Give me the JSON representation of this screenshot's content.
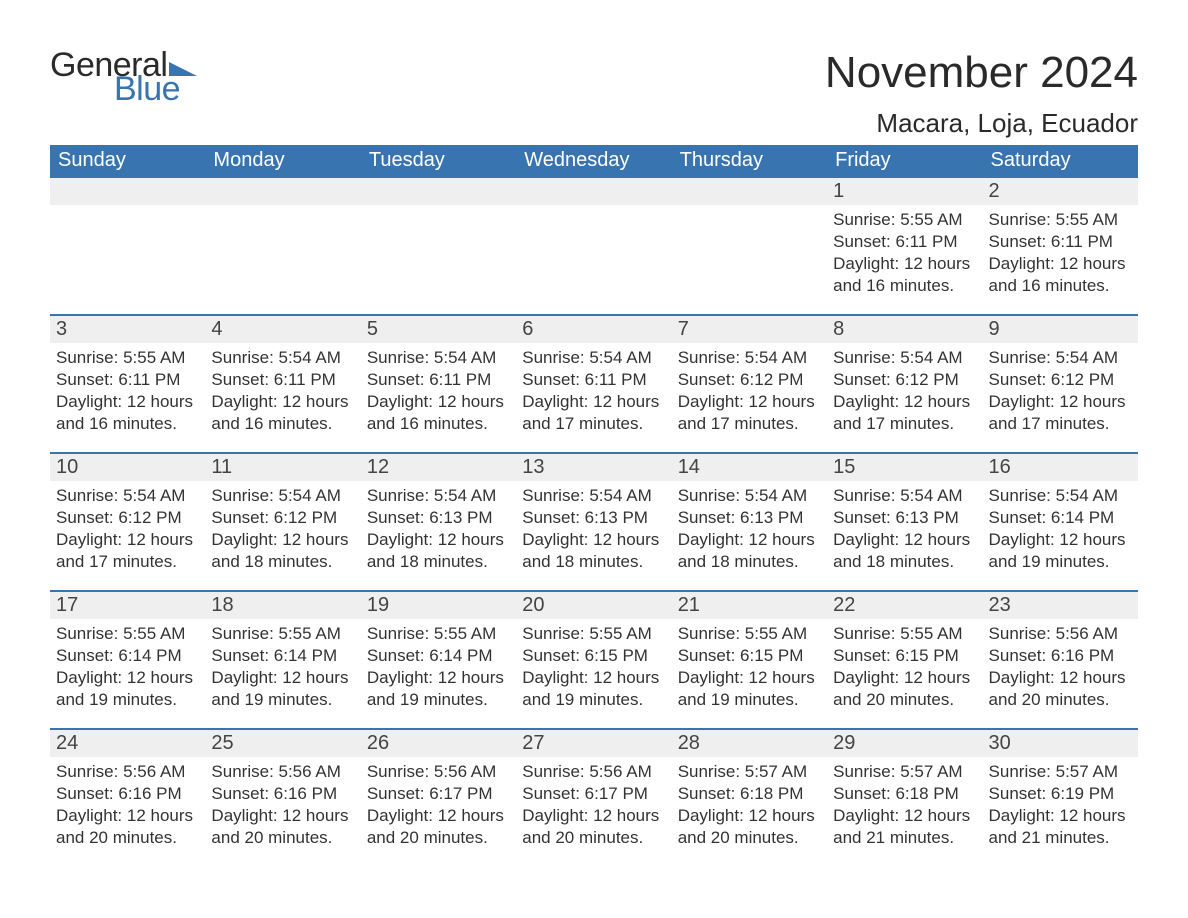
{
  "brand": {
    "general": "General",
    "blue": "Blue"
  },
  "title": "November 2024",
  "location": "Macara, Loja, Ecuador",
  "colors": {
    "header_bg": "#3874b0",
    "header_text": "#ffffff",
    "daynum_bg": "#efefef",
    "border_top": "#3874b0",
    "page_bg": "#ffffff",
    "text": "#2a2a2a"
  },
  "daysOfWeek": [
    "Sunday",
    "Monday",
    "Tuesday",
    "Wednesday",
    "Thursday",
    "Friday",
    "Saturday"
  ],
  "weeks": [
    [
      {
        "empty": true
      },
      {
        "empty": true
      },
      {
        "empty": true
      },
      {
        "empty": true
      },
      {
        "empty": true
      },
      {
        "day": "1",
        "sunrise": "Sunrise: 5:55 AM",
        "sunset": "Sunset: 6:11 PM",
        "daylight": "Daylight: 12 hours and 16 minutes."
      },
      {
        "day": "2",
        "sunrise": "Sunrise: 5:55 AM",
        "sunset": "Sunset: 6:11 PM",
        "daylight": "Daylight: 12 hours and 16 minutes."
      }
    ],
    [
      {
        "day": "3",
        "sunrise": "Sunrise: 5:55 AM",
        "sunset": "Sunset: 6:11 PM",
        "daylight": "Daylight: 12 hours and 16 minutes."
      },
      {
        "day": "4",
        "sunrise": "Sunrise: 5:54 AM",
        "sunset": "Sunset: 6:11 PM",
        "daylight": "Daylight: 12 hours and 16 minutes."
      },
      {
        "day": "5",
        "sunrise": "Sunrise: 5:54 AM",
        "sunset": "Sunset: 6:11 PM",
        "daylight": "Daylight: 12 hours and 16 minutes."
      },
      {
        "day": "6",
        "sunrise": "Sunrise: 5:54 AM",
        "sunset": "Sunset: 6:11 PM",
        "daylight": "Daylight: 12 hours and 17 minutes."
      },
      {
        "day": "7",
        "sunrise": "Sunrise: 5:54 AM",
        "sunset": "Sunset: 6:12 PM",
        "daylight": "Daylight: 12 hours and 17 minutes."
      },
      {
        "day": "8",
        "sunrise": "Sunrise: 5:54 AM",
        "sunset": "Sunset: 6:12 PM",
        "daylight": "Daylight: 12 hours and 17 minutes."
      },
      {
        "day": "9",
        "sunrise": "Sunrise: 5:54 AM",
        "sunset": "Sunset: 6:12 PM",
        "daylight": "Daylight: 12 hours and 17 minutes."
      }
    ],
    [
      {
        "day": "10",
        "sunrise": "Sunrise: 5:54 AM",
        "sunset": "Sunset: 6:12 PM",
        "daylight": "Daylight: 12 hours and 17 minutes."
      },
      {
        "day": "11",
        "sunrise": "Sunrise: 5:54 AM",
        "sunset": "Sunset: 6:12 PM",
        "daylight": "Daylight: 12 hours and 18 minutes."
      },
      {
        "day": "12",
        "sunrise": "Sunrise: 5:54 AM",
        "sunset": "Sunset: 6:13 PM",
        "daylight": "Daylight: 12 hours and 18 minutes."
      },
      {
        "day": "13",
        "sunrise": "Sunrise: 5:54 AM",
        "sunset": "Sunset: 6:13 PM",
        "daylight": "Daylight: 12 hours and 18 minutes."
      },
      {
        "day": "14",
        "sunrise": "Sunrise: 5:54 AM",
        "sunset": "Sunset: 6:13 PM",
        "daylight": "Daylight: 12 hours and 18 minutes."
      },
      {
        "day": "15",
        "sunrise": "Sunrise: 5:54 AM",
        "sunset": "Sunset: 6:13 PM",
        "daylight": "Daylight: 12 hours and 18 minutes."
      },
      {
        "day": "16",
        "sunrise": "Sunrise: 5:54 AM",
        "sunset": "Sunset: 6:14 PM",
        "daylight": "Daylight: 12 hours and 19 minutes."
      }
    ],
    [
      {
        "day": "17",
        "sunrise": "Sunrise: 5:55 AM",
        "sunset": "Sunset: 6:14 PM",
        "daylight": "Daylight: 12 hours and 19 minutes."
      },
      {
        "day": "18",
        "sunrise": "Sunrise: 5:55 AM",
        "sunset": "Sunset: 6:14 PM",
        "daylight": "Daylight: 12 hours and 19 minutes."
      },
      {
        "day": "19",
        "sunrise": "Sunrise: 5:55 AM",
        "sunset": "Sunset: 6:14 PM",
        "daylight": "Daylight: 12 hours and 19 minutes."
      },
      {
        "day": "20",
        "sunrise": "Sunrise: 5:55 AM",
        "sunset": "Sunset: 6:15 PM",
        "daylight": "Daylight: 12 hours and 19 minutes."
      },
      {
        "day": "21",
        "sunrise": "Sunrise: 5:55 AM",
        "sunset": "Sunset: 6:15 PM",
        "daylight": "Daylight: 12 hours and 19 minutes."
      },
      {
        "day": "22",
        "sunrise": "Sunrise: 5:55 AM",
        "sunset": "Sunset: 6:15 PM",
        "daylight": "Daylight: 12 hours and 20 minutes."
      },
      {
        "day": "23",
        "sunrise": "Sunrise: 5:56 AM",
        "sunset": "Sunset: 6:16 PM",
        "daylight": "Daylight: 12 hours and 20 minutes."
      }
    ],
    [
      {
        "day": "24",
        "sunrise": "Sunrise: 5:56 AM",
        "sunset": "Sunset: 6:16 PM",
        "daylight": "Daylight: 12 hours and 20 minutes."
      },
      {
        "day": "25",
        "sunrise": "Sunrise: 5:56 AM",
        "sunset": "Sunset: 6:16 PM",
        "daylight": "Daylight: 12 hours and 20 minutes."
      },
      {
        "day": "26",
        "sunrise": "Sunrise: 5:56 AM",
        "sunset": "Sunset: 6:17 PM",
        "daylight": "Daylight: 12 hours and 20 minutes."
      },
      {
        "day": "27",
        "sunrise": "Sunrise: 5:56 AM",
        "sunset": "Sunset: 6:17 PM",
        "daylight": "Daylight: 12 hours and 20 minutes."
      },
      {
        "day": "28",
        "sunrise": "Sunrise: 5:57 AM",
        "sunset": "Sunset: 6:18 PM",
        "daylight": "Daylight: 12 hours and 20 minutes."
      },
      {
        "day": "29",
        "sunrise": "Sunrise: 5:57 AM",
        "sunset": "Sunset: 6:18 PM",
        "daylight": "Daylight: 12 hours and 21 minutes."
      },
      {
        "day": "30",
        "sunrise": "Sunrise: 5:57 AM",
        "sunset": "Sunset: 6:19 PM",
        "daylight": "Daylight: 12 hours and 21 minutes."
      }
    ]
  ]
}
